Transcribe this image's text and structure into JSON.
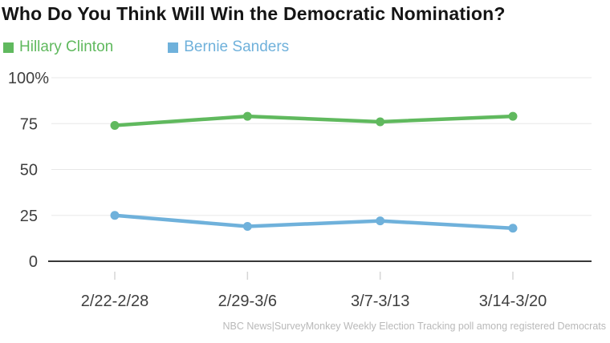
{
  "title": "Who Do You Think Will Win the Democratic Nomination?",
  "legend": {
    "items": [
      {
        "label": "Hillary Clinton",
        "color": "#60b95e"
      },
      {
        "label": "Bernie Sanders",
        "color": "#6fb1db"
      }
    ]
  },
  "footer": {
    "source": "NBC News|SurveyMonkey Weekly Election Tracking poll among registered Democrats"
  },
  "chart_data": {
    "type": "line",
    "title": "Who Do You Think Will Win the Democratic Nomination?",
    "categories": [
      "2/22-2/28",
      "2/29-3/6",
      "3/7-3/13",
      "3/14-3/20"
    ],
    "series": [
      {
        "name": "Hillary Clinton",
        "color": "#60b95e",
        "values": [
          74,
          79,
          76,
          79
        ]
      },
      {
        "name": "Bernie Sanders",
        "color": "#6fb1db",
        "values": [
          25,
          19,
          22,
          18
        ]
      }
    ],
    "ylim": [
      0,
      100
    ],
    "yticks": [
      0,
      25,
      50,
      75,
      100
    ],
    "ytick_labels": [
      "0",
      "25",
      "50",
      "75",
      "100%"
    ],
    "grid": "horizontal",
    "legend_position": "top-left",
    "source_note": "NBC News|SurveyMonkey Weekly Election Tracking poll among registered Democrats"
  },
  "colors": {
    "background": "#ffffff",
    "title_text": "#151515",
    "axis_label": "#3f3f3f",
    "gridline": "#e8e8e8",
    "zero_axis": "#383838",
    "tick_mark": "#d5d5d5",
    "footer_text": "#b9b9b9",
    "hillary_green": "#60b95e",
    "bernie_blue": "#6fb1db"
  }
}
